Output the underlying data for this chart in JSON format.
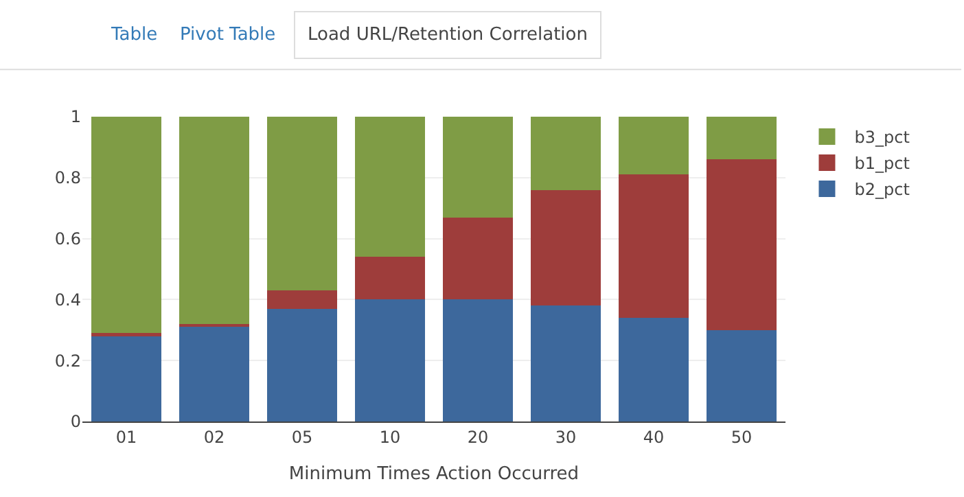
{
  "chart_data": {
    "type": "bar",
    "stacked": true,
    "annotations": [
      "Table",
      "Pivot Table",
      "Load URL/Retention Correlation"
    ],
    "xlabel": "Minimum Times Action Occurred",
    "categories": [
      "01",
      "02",
      "05",
      "10",
      "20",
      "30",
      "40",
      "50"
    ],
    "series": [
      {
        "name": "b2_pct",
        "color": "#3d689c",
        "values": [
          0.28,
          0.31,
          0.37,
          0.4,
          0.4,
          0.38,
          0.34,
          0.3
        ]
      },
      {
        "name": "b1_pct",
        "color": "#9e3d3b",
        "values": [
          0.01,
          0.01,
          0.06,
          0.14,
          0.27,
          0.38,
          0.47,
          0.56
        ]
      },
      {
        "name": "b3_pct",
        "color": "#7f9c45",
        "values": [
          0.71,
          0.68,
          0.57,
          0.46,
          0.33,
          0.24,
          0.19,
          0.14
        ]
      }
    ],
    "ylim": [
      0,
      1
    ],
    "yticks": [
      0,
      {
        "value": 0.2,
        "label": "0.2"
      },
      {
        "value": 0.4,
        "label": "0.4"
      },
      {
        "value": 0.6,
        "label": "0.6"
      },
      {
        "value": 0.8,
        "label": "0.8"
      },
      1
    ],
    "grid": "y",
    "legend": "top right"
  }
}
